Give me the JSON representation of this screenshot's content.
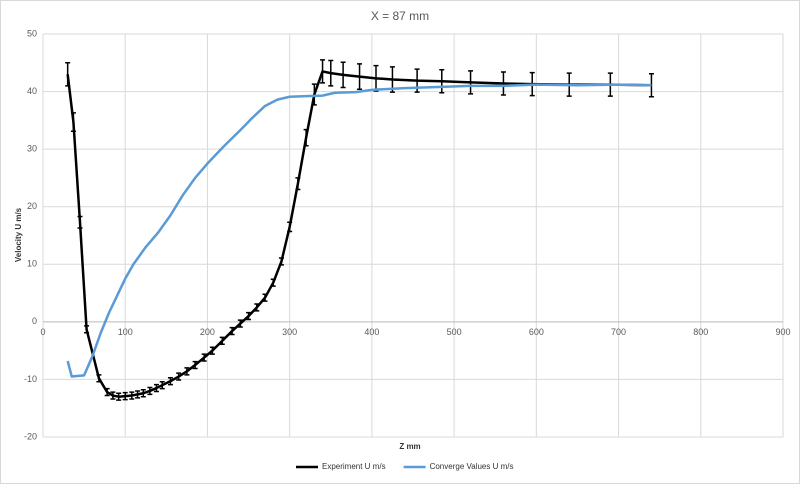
{
  "chart_data": {
    "type": "line",
    "title": "X = 87 mm",
    "x_label": "Z mm",
    "y_label": "Velocity U m/s",
    "xlim": [
      0,
      900
    ],
    "xticks": [
      0,
      100,
      200,
      300,
      400,
      500,
      600,
      700,
      800,
      900
    ],
    "ylim": [
      -20,
      50
    ],
    "yticks": [
      -20,
      -10,
      0,
      10,
      20,
      30,
      40,
      50
    ],
    "grid": true,
    "legend": "bottom",
    "series": [
      {
        "name": "Experiment U m/s",
        "color": "#000000",
        "x": [
          30,
          37,
          45,
          53,
          68,
          78,
          85,
          92,
          100,
          108,
          115,
          122,
          130,
          138,
          145,
          155,
          165,
          175,
          185,
          196,
          206,
          218,
          230,
          240,
          250,
          260,
          270,
          280,
          290,
          300,
          310,
          320,
          330,
          340,
          350,
          365,
          385,
          405,
          425,
          455,
          485,
          520,
          560,
          595,
          640,
          690,
          740
        ],
        "values": [
          43,
          34.7,
          17.3,
          -1.3,
          -9.8,
          -12.2,
          -12.8,
          -13,
          -12.9,
          -12.8,
          -12.6,
          -12.4,
          -12,
          -11.5,
          -11,
          -10.3,
          -9.5,
          -8.6,
          -7.5,
          -6.2,
          -5,
          -3.3,
          -1.6,
          -0.3,
          1,
          2.5,
          4.2,
          6.8,
          10.5,
          16.5,
          24,
          32,
          39.5,
          43.5,
          43.2,
          42.9,
          42.6,
          42.3,
          42.1,
          41.9,
          41.8,
          41.6,
          41.4,
          41.3,
          41.2,
          41.2,
          41.1
        ],
        "errors": [
          2,
          1.6,
          1,
          0.6,
          0.6,
          0.6,
          0.6,
          0.6,
          0.6,
          0.6,
          0.6,
          0.6,
          0.6,
          0.6,
          0.6,
          0.6,
          0.6,
          0.6,
          0.6,
          0.6,
          0.6,
          0.6,
          0.6,
          0.6,
          0.6,
          0.6,
          0.6,
          0.6,
          0.6,
          0.8,
          1,
          1.4,
          1.8,
          2,
          2.2,
          2.2,
          2.2,
          2.2,
          2.2,
          2,
          2,
          2,
          2,
          2,
          2,
          2,
          2
        ]
      },
      {
        "name": "Converge Values U m/s",
        "color": "#5b9bd5",
        "x": [
          30,
          35,
          50,
          60,
          70,
          80,
          90,
          100,
          110,
          125,
          140,
          155,
          170,
          185,
          200,
          220,
          240,
          255,
          270,
          285,
          300,
          320,
          340,
          355,
          380,
          400,
          440,
          480,
          520,
          560,
          600,
          650,
          700,
          740
        ],
        "values": [
          -6.8,
          -9.5,
          -9.3,
          -6,
          -2,
          1.5,
          4.5,
          7.5,
          10,
          13,
          15.5,
          18.5,
          22,
          25,
          27.5,
          30.5,
          33.3,
          35.5,
          37.5,
          38.6,
          39.1,
          39.2,
          39.3,
          39.8,
          39.9,
          40.3,
          40.6,
          40.8,
          41,
          41,
          41.2,
          41.1,
          41.2,
          41.1
        ]
      }
    ]
  }
}
